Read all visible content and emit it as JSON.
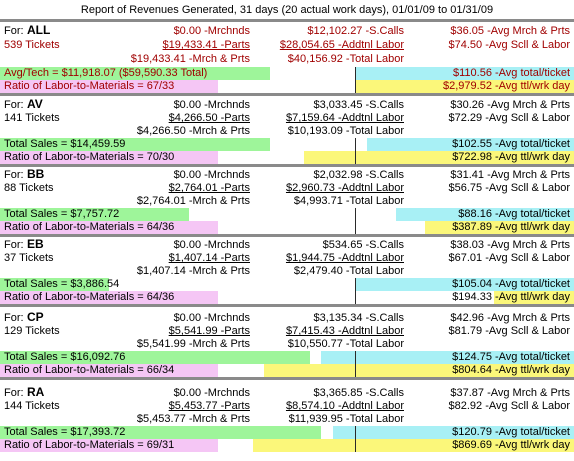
{
  "title": "Report of Revenues Generated, 31 days (20 actual work days), 01/01/09 to 01/31/09",
  "all": {
    "for_label": "For:",
    "name": "ALL",
    "tickets": "539 Tickets",
    "col1": [
      "$0.00 -Mrchnds",
      "$19,433.41 -Parts",
      "$19,433.41 -Mrch & Prts"
    ],
    "col2": [
      "$12,102.27 -S.Calls",
      "$28,054.65 -Addtnl Labor",
      "$40,156.92 -Total Labor"
    ],
    "col3": [
      "$36.05 -Avg Mrch & Prts",
      "$74.50 -Avg Scll & Labor"
    ],
    "avg_tech": "Avg/Tech = $11,918.07  ($59,590.33 Total)",
    "ratio": "Ratio of Labor-to-Materials = 67/33",
    "avg_ticket": "$110.56 -Avg total/ticket",
    "avg_day": "$2,979.52 -Avg ttl/wrk day"
  },
  "techs": [
    {
      "for_label": "For:",
      "name": "AV",
      "tickets": "141 Tickets",
      "col1": [
        "$0.00 -Mrchnds",
        "$4,266.50 -Parts",
        "$4,266.50 -Mrch & Prts"
      ],
      "col2": [
        "$3,033.45 -S.Calls",
        "$7,159.64 -Addtnl Labor",
        "$10,193.09 -Total Labor"
      ],
      "col3": [
        "$30.26 -Avg Mrch & Prts",
        "$72.29 -Avg Scll & Labor"
      ],
      "total_sales": "Total Sales = $14,459.59",
      "ratio": "Ratio of Labor-to-Materials = 70/30",
      "avg_ticket": "$102.55 -Avg total/ticket",
      "avg_day": "$722.98 -Avg ttl/wrk day"
    },
    {
      "for_label": "For:",
      "name": "BB",
      "tickets": "88 Tickets",
      "col1": [
        "$0.00 -Mrchnds",
        "$2,764.01 -Parts",
        "$2,764.01 -Mrch & Prts"
      ],
      "col2": [
        "$2,032.98 -S.Calls",
        "$2,960.73 -Addtnl Labor",
        "$4,993.71 -Total Labor"
      ],
      "col3": [
        "$31.41 -Avg Mrch & Prts",
        "$56.75 -Avg Scll & Labor"
      ],
      "total_sales": "Total Sales = $7,757.72",
      "ratio": "Ratio of Labor-to-Materials = 64/36",
      "avg_ticket": "$88.16 -Avg total/ticket",
      "avg_day": "$387.89 -Avg ttl/wrk day"
    },
    {
      "for_label": "For:",
      "name": "EB",
      "tickets": "37 Tickets",
      "col1": [
        "$0.00 -Mrchnds",
        "$1,407.14 -Parts",
        "$1,407.14 -Mrch & Prts"
      ],
      "col2": [
        "$534.65 -S.Calls",
        "$1,944.75 -Addtnl Labor",
        "$2,479.40 -Total Labor"
      ],
      "col3": [
        "$38.03 -Avg Mrch & Prts",
        "$67.01 -Avg Scll & Labor"
      ],
      "total_sales": "Total Sales = $3,886.54",
      "ratio": "Ratio of Labor-to-Materials = 64/36",
      "avg_ticket": "$105.04 -Avg total/ticket",
      "avg_day": "$194.33 -Avg ttl/wrk day"
    },
    {
      "for_label": "For:",
      "name": "CP",
      "tickets": "129 Tickets",
      "col1": [
        "$0.00 -Mrchnds",
        "$5,541.99 -Parts",
        "$5,541.99 -Mrch & Prts"
      ],
      "col2": [
        "$3,135.34 -S.Calls",
        "$7,415.43 -Addtnl Labor",
        "$10,550.77 -Total Labor"
      ],
      "col3": [
        "$42.96 -Avg Mrch & Prts",
        "$81.79 -Avg Scll & Labor"
      ],
      "total_sales": "Total Sales = $16,092.76",
      "ratio": "Ratio of Labor-to-Materials = 66/34",
      "avg_ticket": "$124.75 -Avg total/ticket",
      "avg_day": "$804.64 -Avg ttl/wrk day"
    },
    {
      "for_label": "For:",
      "name": "RA",
      "tickets": "144 Tickets",
      "col1": [
        "$0.00 -Mrchnds",
        "$5,453.77 -Parts",
        "$5,453.77 -Mrch & Prts"
      ],
      "col2": [
        "$3,365.85 -S.Calls",
        "$8,574.10 -Addtnl Labor",
        "$11,939.95 -Total Labor"
      ],
      "col3": [
        "$37.87 -Avg Mrch & Prts",
        "$82.92 -Avg Scll & Labor"
      ],
      "total_sales": "Total Sales = $17,393.72",
      "ratio": "Ratio of Labor-to-Materials = 69/31",
      "avg_ticket": "$120.79 -Avg total/ticket",
      "avg_day": "$869.69 -Avg ttl/wrk day"
    }
  ],
  "bar_fill": {
    "all": {
      "green": 0.47,
      "pink": 0.38,
      "cyan_from": 0.62,
      "yellow_from": 0.62
    },
    "AV": {
      "green": 0.47,
      "pink": 0.38,
      "cyan_from": 0.64,
      "yellow_from": 0.53
    },
    "BB": {
      "green": 0.33,
      "pink": 0.38,
      "cyan_from": 0.69,
      "yellow_from": 0.74
    },
    "EB": {
      "green": 0.19,
      "pink": 0.38,
      "cyan_from": 0.62,
      "yellow_from": 0.86
    },
    "CP": {
      "green": 0.54,
      "pink": 0.38,
      "cyan_from": 0.56,
      "yellow_from": 0.46
    },
    "RA": {
      "green": 0.56,
      "pink": 0.38,
      "cyan_from": 0.58,
      "yellow_from": 0.44
    }
  }
}
